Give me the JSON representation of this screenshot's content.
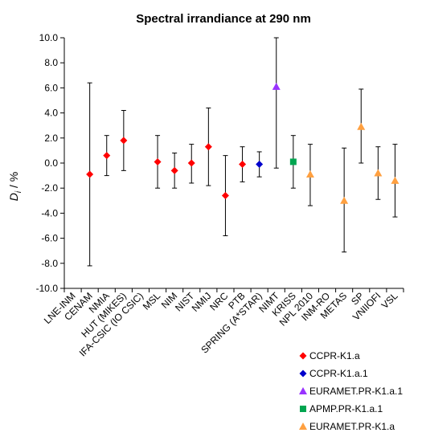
{
  "chart_data": {
    "type": "scatter",
    "title": "Spectral irrandiance at 290 nm",
    "ylabel_main": "D",
    "ylabel_sub": "i",
    "ylabel_unit": " / %",
    "ylim": [
      -10.0,
      10.0
    ],
    "yticks": [
      "10.0",
      "8.0",
      "6.0",
      "4.0",
      "2.0",
      "0.0",
      "-2.0",
      "-4.0",
      "-6.0",
      "-8.0",
      "-10.0"
    ],
    "categories": [
      "LNE-INM",
      "CENAM",
      "NMIA",
      "HUT (MIKES)",
      "IFA-CSIC (IO CSIC)",
      "MSL",
      "NIM",
      "NIST",
      "NMIJ",
      "NRC",
      "PTB",
      "SPRING (A*STAR)",
      "NIMT",
      "KRISS",
      "NPL 2010",
      "INM-RO",
      "METAS",
      "SP",
      "VNIIOFI",
      "VSL"
    ],
    "points": [
      {
        "category": "CENAM",
        "y": -0.9,
        "ylow": -8.2,
        "yhigh": 6.4,
        "series": 0
      },
      {
        "category": "NMIA",
        "y": 0.6,
        "ylow": -1.0,
        "yhigh": 2.2,
        "series": 0
      },
      {
        "category": "HUT (MIKES)",
        "y": 1.8,
        "ylow": -0.6,
        "yhigh": 4.2,
        "series": 0
      },
      {
        "category": "MSL",
        "y": 0.1,
        "ylow": -2.0,
        "yhigh": 2.2,
        "series": 0
      },
      {
        "category": "NIM",
        "y": -0.6,
        "ylow": -2.0,
        "yhigh": 0.8,
        "series": 0
      },
      {
        "category": "NIST",
        "y": 0.0,
        "ylow": -1.6,
        "yhigh": 1.5,
        "series": 0
      },
      {
        "category": "NMIJ",
        "y": 1.3,
        "ylow": -1.8,
        "yhigh": 4.4,
        "series": 0
      },
      {
        "category": "NRC",
        "y": -2.6,
        "ylow": -5.8,
        "yhigh": 0.6,
        "series": 0
      },
      {
        "category": "PTB",
        "y": -0.1,
        "ylow": -1.5,
        "yhigh": 1.3,
        "series": 0
      },
      {
        "category": "SPRING (A*STAR)",
        "y": -0.1,
        "ylow": -1.1,
        "yhigh": 0.9,
        "series": 1
      },
      {
        "category": "NIMT",
        "y": 6.1,
        "ylow": -0.4,
        "yhigh": 10.0,
        "series": 2
      },
      {
        "category": "KRISS",
        "y": 0.1,
        "ylow": -2.0,
        "yhigh": 2.2,
        "series": 3
      },
      {
        "category": "NPL 2010",
        "y": -0.9,
        "ylow": -3.4,
        "yhigh": 1.5,
        "series": 4
      },
      {
        "category": "METAS",
        "y": -3.0,
        "ylow": -7.1,
        "yhigh": 1.2,
        "series": 4
      },
      {
        "category": "SP",
        "y": 2.9,
        "ylow": 0.0,
        "yhigh": 5.9,
        "series": 4
      },
      {
        "category": "VNIIOFI",
        "y": -0.8,
        "ylow": -2.9,
        "yhigh": 1.3,
        "series": 4
      },
      {
        "category": "VSL",
        "y": -1.4,
        "ylow": -4.3,
        "yhigh": 1.5,
        "series": 4
      }
    ],
    "series": [
      {
        "name": "CCPR-K1.a",
        "marker": "diamond",
        "color": "#ff0000"
      },
      {
        "name": "CCPR-K1.a.1",
        "marker": "diamond",
        "color": "#0000cc"
      },
      {
        "name": "EURAMET.PR-K1.a.1",
        "marker": "triangle",
        "color": "#9933ff"
      },
      {
        "name": "APMP.PR-K1.a.1",
        "marker": "square",
        "color": "#00a550"
      },
      {
        "name": "EURAMET.PR-K1.a",
        "marker": "triangle",
        "color": "#ffa040"
      }
    ],
    "grid": false,
    "legend_position": "bottom-right"
  }
}
